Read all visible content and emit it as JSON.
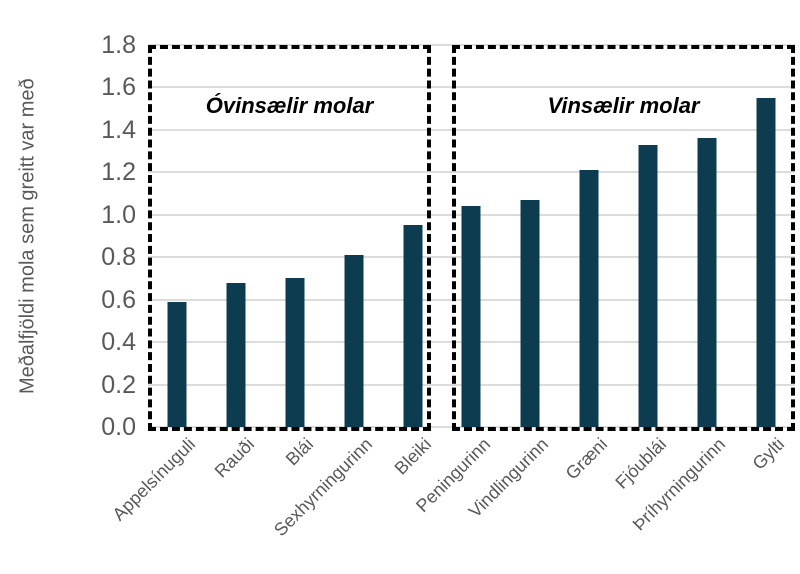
{
  "chart_data": {
    "type": "bar",
    "ylabel": "Meðalfjöldi mola sem greitt var með",
    "xlabel": "",
    "ylim": [
      0,
      1.8
    ],
    "ytick_interval": 0.2,
    "yticks": [
      "0.0",
      "0.2",
      "0.4",
      "0.6",
      "0.8",
      "1.0",
      "1.2",
      "1.4",
      "1.6",
      "1.8"
    ],
    "grid": true,
    "legend": false,
    "categories": [
      "Appelsínuguli",
      "Rauði",
      "Blái",
      "Sexhyrningurinn",
      "Bleiki",
      "Peningurinn",
      "Vindlingurinn",
      "Græni",
      "Fjóublái",
      "Þríhyrningurinn",
      "Gylti"
    ],
    "values": [
      0.59,
      0.68,
      0.7,
      0.81,
      0.95,
      1.04,
      1.07,
      1.21,
      1.33,
      1.36,
      1.55
    ],
    "group_annotations": [
      {
        "label": "Óvinsælir molar",
        "category_span": [
          0,
          4
        ]
      },
      {
        "label": "Vinsælir molar",
        "category_span": [
          5,
          10
        ]
      }
    ]
  },
  "style": {
    "bar_color": "#0d3c50",
    "grid_color": "#dcdcdc",
    "axis_text_color": "#595959",
    "annotation_color": "#000000",
    "box_border_color": "#000000"
  }
}
